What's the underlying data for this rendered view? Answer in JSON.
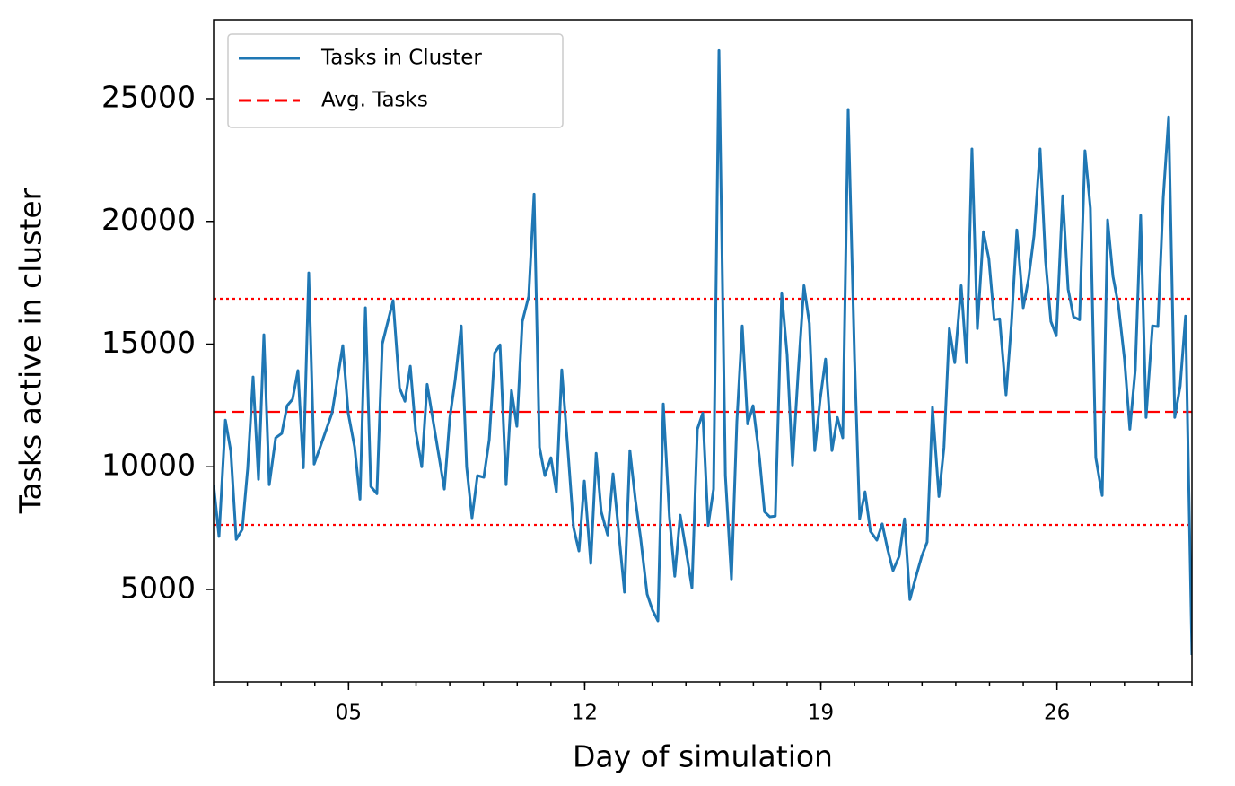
{
  "chart_data": {
    "type": "line",
    "xlabel": "Day of simulation",
    "ylabel": "Tasks active in cluster",
    "xlim": [
      1,
      30
    ],
    "ylim": [
      1234,
      28217
    ],
    "xticks": [
      {
        "value": 5,
        "label": "05"
      },
      {
        "value": 12,
        "label": "12"
      },
      {
        "value": 19,
        "label": "19"
      },
      {
        "value": 26,
        "label": "26"
      }
    ],
    "xminorticks": [
      1,
      2,
      3,
      4,
      5,
      6,
      7,
      8,
      9,
      10,
      11,
      12,
      13,
      14,
      15,
      16,
      17,
      18,
      19,
      20,
      21,
      22,
      23,
      24,
      25,
      26,
      27,
      28,
      29,
      30
    ],
    "yticks": [
      5000,
      10000,
      15000,
      20000,
      25000
    ],
    "legend": "upper left",
    "series": [
      {
        "name": "Tasks in Cluster",
        "color": "#1f77b4",
        "x": [
          1.0,
          1.16,
          1.35,
          1.51,
          1.67,
          1.85,
          2.01,
          2.17,
          2.33,
          2.49,
          2.65,
          2.84,
          3.02,
          3.18,
          3.34,
          3.5,
          3.66,
          3.82,
          3.98,
          4.14,
          4.51,
          4.83,
          4.99,
          5.18,
          5.34,
          5.5,
          5.66,
          5.84,
          6.0,
          6.32,
          6.51,
          6.67,
          6.83,
          6.99,
          7.17,
          7.33,
          7.49,
          7.84,
          8.0,
          8.16,
          8.34,
          8.5,
          8.66,
          8.82,
          9.01,
          9.17,
          9.33,
          9.49,
          9.67,
          9.83,
          9.99,
          10.15,
          10.34,
          10.5,
          10.66,
          10.82,
          11.0,
          11.16,
          11.32,
          11.51,
          11.67,
          11.83,
          11.99,
          12.18,
          12.34,
          12.49,
          12.68,
          12.84,
          13.0,
          13.18,
          13.34,
          13.5,
          13.66,
          13.85,
          14.01,
          14.17,
          14.33,
          14.51,
          14.67,
          14.83,
          14.99,
          15.18,
          15.34,
          15.5,
          15.66,
          15.82,
          15.98,
          16.17,
          16.35,
          16.51,
          16.67,
          16.83,
          16.99,
          17.18,
          17.33,
          17.49,
          17.65,
          17.84,
          18.0,
          18.16,
          18.32,
          18.5,
          18.66,
          18.82,
          18.98,
          19.14,
          19.33,
          19.49,
          19.65,
          19.81,
          20.0,
          20.15,
          20.31,
          20.47,
          20.66,
          20.82,
          20.98,
          21.14,
          21.32,
          21.48,
          21.64,
          21.8,
          21.99,
          22.15,
          22.31,
          22.5,
          22.65,
          22.81,
          22.97,
          23.16,
          23.32,
          23.48,
          23.64,
          23.82,
          23.98,
          24.14,
          24.3,
          24.49,
          24.65,
          24.81,
          25.0,
          25.16,
          25.32,
          25.5,
          25.66,
          25.82,
          25.98,
          26.17,
          26.33,
          26.49,
          26.67,
          26.83,
          26.99,
          27.15,
          27.34,
          27.5,
          27.66,
          27.82,
          28.0,
          28.16,
          28.32,
          28.48,
          28.64,
          28.83,
          28.99,
          29.15,
          29.31,
          29.49,
          29.65,
          29.81,
          30.0
        ],
        "values": [
          9270,
          7160,
          11900,
          10630,
          7040,
          7450,
          9930,
          13660,
          9490,
          15380,
          9270,
          11180,
          11360,
          12490,
          12750,
          13920,
          9960,
          17900,
          10110,
          10730,
          12190,
          14940,
          12190,
          10800,
          8680,
          16480,
          9200,
          8900,
          15010,
          16770,
          13220,
          12670,
          14100,
          11460,
          10000,
          13360,
          12010,
          9090,
          11970,
          13540,
          15740,
          10000,
          7920,
          9640,
          9570,
          11100,
          14640,
          14970,
          9270,
          13110,
          11650,
          15920,
          16940,
          21110,
          10800,
          9640,
          10370,
          8980,
          13950,
          10550,
          7520,
          6570,
          9420,
          6060,
          10550,
          8170,
          7220,
          9710,
          7450,
          4890,
          10660,
          8680,
          7070,
          4810,
          4160,
          3720,
          12560,
          7990,
          5540,
          8030,
          6710,
          5070,
          11530,
          12190,
          7610,
          9090,
          26960,
          9640,
          5430,
          11830,
          15740,
          11750,
          12490,
          10370,
          8170,
          7960,
          7990,
          17090,
          14570,
          10070,
          13660,
          17380,
          15850,
          10660,
          12750,
          14390,
          10660,
          12010,
          11180,
          24560,
          14390,
          7880,
          8980,
          7370,
          7010,
          7670,
          6640,
          5770,
          6350,
          7880,
          4590,
          5430,
          6350,
          6930,
          12420,
          8790,
          10800,
          15630,
          14240,
          17380,
          14240,
          22950,
          15630,
          19580,
          18480,
          15990,
          16030,
          12930,
          15850,
          19650,
          16480,
          17680,
          19430,
          22950,
          18410,
          15920,
          15340,
          21040,
          17240,
          16110,
          15990,
          22880,
          20540,
          10370,
          8830,
          20060,
          17750,
          16590,
          14390,
          11530,
          13950,
          20240,
          12010,
          15740,
          15710,
          20970,
          24260,
          12010,
          13290,
          16140,
          2330
        ]
      }
    ],
    "hlines": [
      {
        "name": "Avg. Tasks",
        "value": 12240,
        "color": "#ff0000",
        "style": "dashed"
      },
      {
        "value": 16845,
        "color": "#ff0000",
        "style": "dotted"
      },
      {
        "value": 7632,
        "color": "#ff0000",
        "style": "dotted"
      }
    ]
  }
}
